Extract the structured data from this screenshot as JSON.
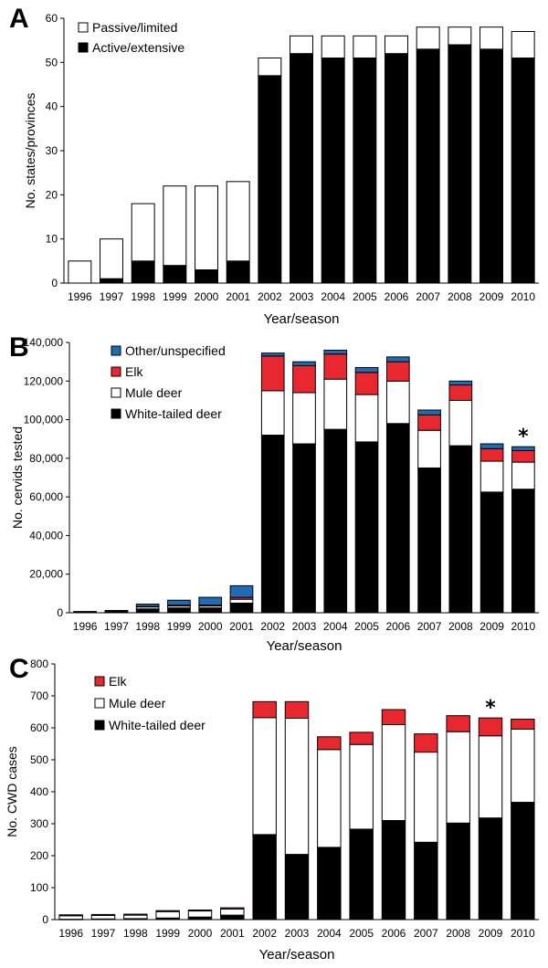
{
  "chart_data": [
    {
      "type": "bar",
      "panel": "A",
      "stacked": true,
      "categories": [
        "1996",
        "1997",
        "1998",
        "1999",
        "2000",
        "2001",
        "2002",
        "2003",
        "2004",
        "2005",
        "2006",
        "2007",
        "2008",
        "2009",
        "2010"
      ],
      "series": [
        {
          "name": "Active/extensive",
          "color": "#000000",
          "values": [
            0,
            1,
            5,
            4,
            3,
            5,
            47,
            52,
            51,
            51,
            52,
            53,
            54,
            53,
            51
          ]
        },
        {
          "name": "Passive/limited",
          "color": "#ffffff",
          "values": [
            5,
            9,
            13,
            18,
            19,
            18,
            4,
            4,
            5,
            5,
            4,
            5,
            4,
            5,
            6
          ]
        }
      ],
      "legend": [
        "Passive/limited",
        "Active/extensive"
      ],
      "legend_position": "top-left",
      "xlabel": "Year/season",
      "ylabel": "No. states/provinces",
      "ylim": [
        0,
        60
      ],
      "yticks": [
        "0",
        "10",
        "20",
        "30",
        "40",
        "50",
        "60"
      ],
      "grid": false,
      "annotations": []
    },
    {
      "type": "bar",
      "panel": "B",
      "stacked": true,
      "categories": [
        "1996",
        "1997",
        "1998",
        "1999",
        "2000",
        "2001",
        "2002",
        "2003",
        "2004",
        "2005",
        "2006",
        "2007",
        "2008",
        "2009",
        "2010"
      ],
      "series": [
        {
          "name": "White-tailed deer",
          "color": "#000000",
          "values": [
            300,
            500,
            2000,
            2500,
            2500,
            5000,
            92000,
            87500,
            95000,
            88500,
            98000,
            75000,
            86500,
            62500,
            64000
          ]
        },
        {
          "name": "Mule deer",
          "color": "#ffffff",
          "values": [
            100,
            300,
            1000,
            1000,
            1000,
            2000,
            23000,
            26500,
            26000,
            24500,
            22000,
            19500,
            23500,
            16000,
            14000
          ]
        },
        {
          "name": "Elk",
          "color": "#e8272f",
          "values": [
            50,
            100,
            300,
            500,
            500,
            1000,
            18000,
            14000,
            13000,
            11500,
            10000,
            8000,
            8000,
            6500,
            6000
          ]
        },
        {
          "name": "Other/unspecified",
          "color": "#1f6cb4",
          "values": [
            200,
            300,
            1200,
            2500,
            4000,
            6000,
            1500,
            2000,
            2000,
            2500,
            2500,
            2500,
            2000,
            2500,
            2000
          ]
        }
      ],
      "legend": [
        "Other/unspecified",
        "Elk",
        "Mule deer",
        "White-tailed deer"
      ],
      "legend_position": "top-left",
      "xlabel": "Year/season",
      "ylabel": "No. cervids tested",
      "ylim": [
        0,
        140000
      ],
      "yticks": [
        "0",
        "20,000",
        "40,000",
        "60,000",
        "80,000",
        "100,000",
        "120,000",
        "140,000"
      ],
      "grid": false,
      "annotations": [
        {
          "text": "*",
          "category": "2010"
        }
      ]
    },
    {
      "type": "bar",
      "panel": "C",
      "stacked": true,
      "categories": [
        "1996",
        "1997",
        "1998",
        "1999",
        "2000",
        "2001",
        "2002",
        "2003",
        "2004",
        "2005",
        "2006",
        "2007",
        "2008",
        "2009",
        "2010"
      ],
      "series": [
        {
          "name": "White-tailed deer",
          "color": "#000000",
          "values": [
            1,
            2,
            3,
            5,
            8,
            14,
            266,
            204,
            226,
            283,
            310,
            242,
            302,
            318,
            367
          ]
        },
        {
          "name": "Mule deer",
          "color": "#ffffff",
          "values": [
            11,
            11,
            11,
            20,
            19,
            19,
            366,
            426,
            306,
            265,
            300,
            282,
            286,
            257,
            229
          ]
        },
        {
          "name": "Elk",
          "color": "#e8272f",
          "values": [
            3,
            3,
            3,
            3,
            3,
            4,
            50,
            52,
            40,
            38,
            47,
            57,
            50,
            56,
            31
          ]
        }
      ],
      "legend": [
        "Elk",
        "Mule deer",
        "White-tailed deer"
      ],
      "legend_position": "top-left",
      "xlabel": "Year/season",
      "ylabel": "No. CWD cases",
      "ylim": [
        0,
        800
      ],
      "yticks": [
        "0",
        "100",
        "200",
        "300",
        "400",
        "500",
        "600",
        "700",
        "800"
      ],
      "grid": false,
      "annotations": [
        {
          "text": "*",
          "category": "2009"
        }
      ]
    }
  ]
}
